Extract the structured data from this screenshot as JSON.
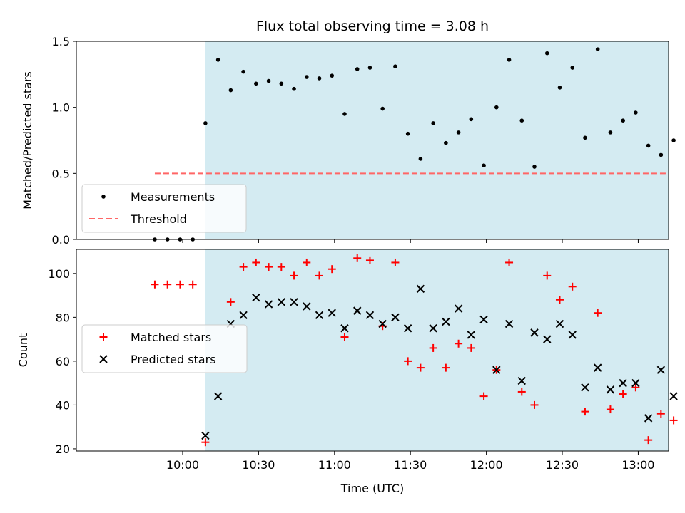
{
  "chart_data": [
    {
      "type": "scatter",
      "title": "Flux total observing time = 3.08 h",
      "xlabel": "",
      "ylabel": "Matched/Predicted stars",
      "x_unit": "minutes after 10:00 UTC",
      "xlim": [
        -42,
        192
      ],
      "ylim": [
        0,
        1.5
      ],
      "yticks": [
        "0.0",
        "0.5",
        "1.0",
        "1.5"
      ],
      "shaded_span": [
        9,
        195
      ],
      "shade_color": "#add8e6",
      "threshold": {
        "value": 0.5,
        "x_range": [
          -11,
          195
        ],
        "color": "#ff6666"
      },
      "legend": {
        "placement": "lower-left",
        "entries": [
          {
            "label": "Measurements",
            "marker": "dot",
            "color": "#000000"
          },
          {
            "label": "Threshold",
            "marker": "dashed-line",
            "color": "#ff6666"
          }
        ]
      },
      "series": [
        {
          "name": "Measurements",
          "color": "#000000",
          "x": [
            -11,
            -6,
            -1,
            4,
            9,
            14,
            19,
            24,
            29,
            34,
            39,
            44,
            49,
            54,
            59,
            64,
            69,
            74,
            79,
            84,
            89,
            94,
            99,
            104,
            109,
            114,
            119,
            124,
            129,
            134,
            139,
            144,
            149,
            154,
            159,
            164,
            169,
            174,
            179,
            184,
            189,
            194
          ],
          "y": [
            0,
            0,
            0,
            0,
            0.88,
            1.36,
            1.13,
            1.27,
            1.18,
            1.2,
            1.18,
            1.14,
            1.23,
            1.22,
            1.24,
            0.95,
            1.29,
            1.3,
            0.99,
            1.31,
            0.8,
            0.61,
            0.88,
            0.73,
            0.81,
            0.91,
            0.56,
            1.0,
            1.36,
            0.9,
            0.55,
            1.41,
            1.15,
            1.3,
            0.77,
            1.44,
            0.81,
            0.9,
            0.96,
            0.71,
            0.64,
            0.75
          ]
        }
      ]
    },
    {
      "type": "scatter",
      "title": "",
      "xlabel": "Time (UTC)",
      "ylabel": "Count",
      "x_unit": "minutes after 10:00 UTC",
      "xlim": [
        -42,
        192
      ],
      "ylim": [
        19,
        111
      ],
      "yticks": [
        "20",
        "40",
        "60",
        "80",
        "100"
      ],
      "xticks": [
        {
          "value": 0,
          "label": "10:00"
        },
        {
          "value": 30,
          "label": "10:30"
        },
        {
          "value": 60,
          "label": "11:00"
        },
        {
          "value": 90,
          "label": "11:30"
        },
        {
          "value": 120,
          "label": "12:00"
        },
        {
          "value": 150,
          "label": "12:30"
        },
        {
          "value": 180,
          "label": "13:00"
        }
      ],
      "shaded_span": [
        9,
        195
      ],
      "shade_color": "#add8e6",
      "legend": {
        "placement": "center-left",
        "entries": [
          {
            "label": "Matched stars",
            "marker": "plus",
            "color": "#ff0000"
          },
          {
            "label": "Predicted stars",
            "marker": "x",
            "color": "#000000"
          }
        ]
      },
      "series": [
        {
          "name": "Matched stars",
          "color": "#ff0000",
          "marker": "plus",
          "x": [
            -11,
            -6,
            -1,
            4,
            9,
            19,
            24,
            29,
            34,
            39,
            44,
            49,
            54,
            59,
            64,
            69,
            74,
            79,
            84,
            89,
            94,
            99,
            104,
            109,
            114,
            119,
            124,
            129,
            134,
            139,
            144,
            149,
            154,
            159,
            164,
            169,
            174,
            179,
            184,
            189,
            194
          ],
          "y": [
            95,
            95,
            95,
            95,
            23,
            87,
            103,
            105,
            103,
            103,
            99,
            105,
            99,
            102,
            71,
            107,
            106,
            76,
            105,
            60,
            57,
            66,
            57,
            68,
            66,
            44,
            56,
            105,
            46,
            40,
            99,
            88,
            94,
            37,
            82,
            38,
            45,
            48,
            24,
            36,
            33
          ]
        },
        {
          "name": "Predicted stars",
          "color": "#000000",
          "marker": "x",
          "x": [
            9,
            14,
            19,
            24,
            29,
            34,
            39,
            44,
            49,
            54,
            59,
            64,
            69,
            74,
            79,
            84,
            89,
            94,
            99,
            104,
            109,
            114,
            119,
            124,
            129,
            134,
            139,
            144,
            149,
            154,
            159,
            164,
            169,
            174,
            179,
            184,
            189,
            194
          ],
          "y": [
            26,
            44,
            77,
            81,
            89,
            86,
            87,
            87,
            85,
            81,
            82,
            75,
            83,
            81,
            77,
            80,
            75,
            93,
            75,
            78,
            84,
            72,
            79,
            56,
            77,
            51,
            73,
            70,
            77,
            72,
            48,
            57,
            47,
            50,
            50,
            34,
            56,
            44
          ]
        }
      ]
    }
  ]
}
